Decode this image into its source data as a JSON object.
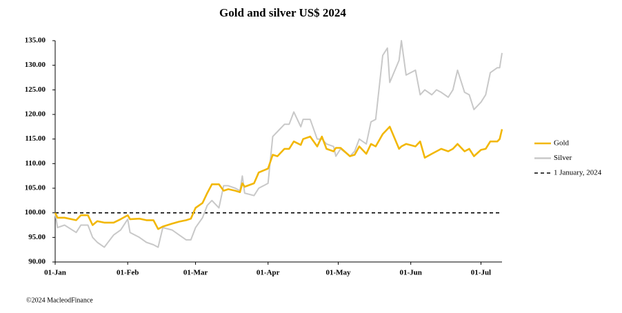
{
  "chart_data": {
    "type": "line",
    "title": "Gold and silver  US$ 2024",
    "footer": "©2024 MacleodFinance",
    "x": [
      "01-Jan",
      "02-Jan",
      "05-Jan",
      "10-Jan",
      "12-Jan",
      "15-Jan",
      "17-Jan",
      "19-Jan",
      "22-Jan",
      "26-Jan",
      "29-Jan",
      "01-Feb",
      "02-Feb",
      "06-Feb",
      "09-Feb",
      "12-Feb",
      "14-Feb",
      "16-Feb",
      "20-Feb",
      "23-Feb",
      "26-Feb",
      "28-Feb",
      "01-Mar",
      "04-Mar",
      "06-Mar",
      "08-Mar",
      "11-Mar",
      "13-Mar",
      "15-Mar",
      "18-Mar",
      "20-Mar",
      "21-Mar",
      "22-Mar",
      "26-Mar",
      "28-Mar",
      "01-Apr",
      "03-Apr",
      "05-Apr",
      "08-Apr",
      "10-Apr",
      "12-Apr",
      "15-Apr",
      "16-Apr",
      "19-Apr",
      "22-Apr",
      "24-Apr",
      "26-Apr",
      "29-Apr",
      "30-Apr",
      "02-May",
      "06-May",
      "08-May",
      "10-May",
      "13-May",
      "15-May",
      "17-May",
      "20-May",
      "22-May",
      "23-May",
      "27-May",
      "28-May",
      "30-May",
      "03-Jun",
      "05-Jun",
      "07-Jun",
      "10-Jun",
      "12-Jun",
      "14-Jun",
      "17-Jun",
      "19-Jun",
      "21-Jun",
      "24-Jun",
      "26-Jun",
      "28-Jun",
      "01-Jul",
      "03-Jul",
      "05-Jul",
      "08-Jul",
      "09-Jul",
      "10-Jul"
    ],
    "series": [
      {
        "name": "Gold",
        "color": "#f2b705",
        "values": [
          100,
          99,
          99,
          98.5,
          99.5,
          99.5,
          97.5,
          98.3,
          98,
          98,
          98.7,
          99.5,
          98.7,
          98.8,
          98.5,
          98.5,
          96.7,
          97.2,
          97.8,
          98.2,
          98.5,
          98.8,
          101,
          102,
          104,
          105.8,
          105.8,
          104.5,
          104.8,
          104.5,
          104.2,
          106,
          105.3,
          106,
          108.2,
          109,
          111.8,
          111.5,
          113,
          113,
          114.5,
          113.8,
          115,
          115.5,
          113.5,
          115.5,
          113,
          112.5,
          113.2,
          113.2,
          111.5,
          111.8,
          113.5,
          112,
          114,
          113.5,
          116,
          117,
          117.5,
          113,
          113.5,
          114,
          113.5,
          114.5,
          111.2,
          112,
          112.5,
          113,
          112.5,
          113,
          114,
          112.5,
          113,
          111.5,
          112.8,
          113,
          114.5,
          114.5,
          115,
          117
        ]
      },
      {
        "name": "Silver",
        "color": "#c8c8c8",
        "values": [
          100,
          97,
          97.5,
          96,
          97.5,
          97.5,
          95,
          94,
          93,
          95.5,
          96.5,
          98.7,
          96,
          95,
          94,
          93.5,
          93,
          97,
          96.5,
          95.5,
          94.5,
          94.5,
          97,
          99,
          101.5,
          102.5,
          101,
          105.5,
          105.5,
          105,
          104.5,
          107.5,
          104,
          103.5,
          105,
          106,
          115.5,
          116.5,
          118,
          118,
          120.5,
          117.5,
          119,
          119,
          115,
          115,
          114,
          113.5,
          111.5,
          113,
          111.5,
          112.5,
          115,
          114,
          118.5,
          119,
          132,
          133.5,
          126.5,
          131,
          135,
          128,
          129,
          124,
          125,
          124,
          125,
          124.5,
          123.5,
          125,
          129,
          124.5,
          124,
          121,
          122.5,
          124,
          128.5,
          129.5,
          129.5,
          132.5
        ]
      }
    ],
    "reference_line": {
      "name": "1 January, 2024",
      "value": 100,
      "color": "#000000"
    },
    "xlim": [
      "01-Jan",
      "10-Jul"
    ],
    "xticks": [
      "01-Jan",
      "01-Feb",
      "01-Mar",
      "01-Apr",
      "01-May",
      "01-Jun",
      "01-Jul"
    ],
    "ylim": [
      90,
      135
    ],
    "yticks": [
      {
        "value": 90,
        "label": "90.00"
      },
      {
        "value": 95,
        "label": "95.00"
      },
      {
        "value": 100,
        "label": "100.00"
      },
      {
        "value": 105,
        "label": "105.00"
      },
      {
        "value": 110,
        "label": "110.00"
      },
      {
        "value": 115,
        "label": "115.00"
      },
      {
        "value": 120,
        "label": "120.00"
      },
      {
        "value": 125,
        "label": "125.00"
      },
      {
        "value": 130,
        "label": "130.00"
      },
      {
        "value": 135,
        "label": "135.00"
      }
    ],
    "grid": false,
    "legend": "right"
  }
}
